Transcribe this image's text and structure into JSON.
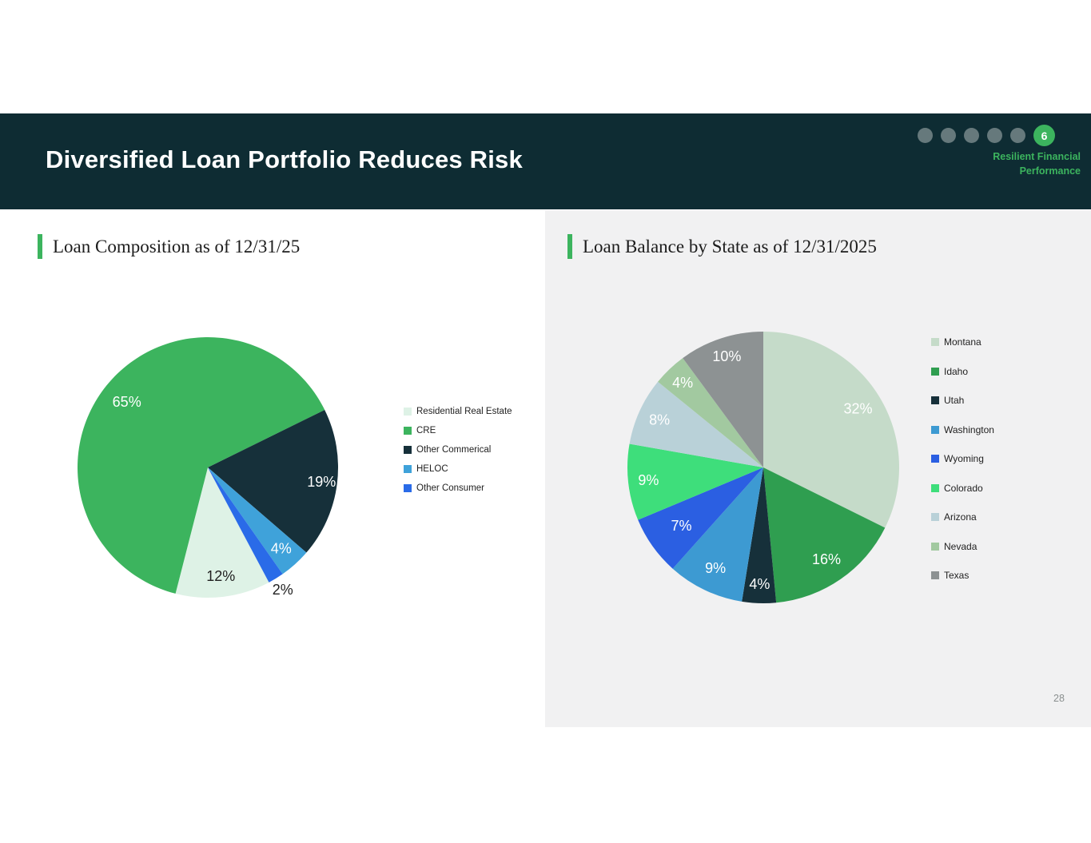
{
  "slide": {
    "title": "Diversified Loan Portfolio Reduces Risk",
    "page_number": "28"
  },
  "header": {
    "progress_dot_count": 5,
    "badge_number": "6",
    "brand_line1": "Resilient Financial",
    "brand_line2": "Performance"
  },
  "panels": {
    "left_title": "Loan Composition as of 12/31/25",
    "right_title": "Loan Balance by State as of 12/31/2025"
  },
  "colors": {
    "header_bg": "#0e2c33",
    "accent_green": "#3cb45e",
    "panel_bg": "#f1f1f2",
    "dot_gray": "#66797c"
  },
  "chart_data": [
    {
      "type": "pie",
      "title": "Loan Composition as of 12/31/25",
      "categories": [
        "Residential Real Estate",
        "CRE",
        "Other Commerical",
        "HELOC",
        "Other Consumer"
      ],
      "values": [
        12,
        65,
        19,
        4,
        2
      ],
      "data_labels": [
        "12%",
        "65%",
        "19%",
        "4%",
        "2%"
      ],
      "colors": [
        "#def2e6",
        "#3cb45e",
        "#16303a",
        "#3fa2da",
        "#2a6be8"
      ],
      "label_colors": [
        "#1f1f1f",
        "#ffffff",
        "#ffffff",
        "#ffffff",
        "#1f1f1f"
      ],
      "label_radius": [
        0.84,
        0.8,
        0.88,
        0.84,
        1.1
      ],
      "start_angle_deg": 152,
      "legend_position": "right"
    },
    {
      "type": "pie",
      "title": "Loan Balance by State as of 12/31/2025",
      "categories": [
        "Montana",
        "Idaho",
        "Utah",
        "Washington",
        "Wyoming",
        "Colorado",
        "Arizona",
        "Nevada",
        "Texas"
      ],
      "values": [
        32,
        16,
        4,
        9,
        7,
        9,
        8,
        4,
        10
      ],
      "data_labels": [
        "32%",
        "16%",
        "4%",
        "9%",
        "7%",
        "9%",
        "8%",
        "4%",
        "10%"
      ],
      "colors": [
        "#c5dbc9",
        "#2f9e50",
        "#16303a",
        "#3d9ad2",
        "#2b5fe2",
        "#3ede7b",
        "#b9d1d8",
        "#a2c9a0",
        "#8d9293"
      ],
      "label_colors": [
        "#ffffff",
        "#ffffff",
        "#ffffff",
        "#ffffff",
        "#ffffff",
        "#ffffff",
        "#ffffff",
        "#ffffff",
        "#ffffff"
      ],
      "label_radius": [
        0.82,
        0.82,
        0.86,
        0.82,
        0.74,
        0.85,
        0.84,
        0.86,
        0.86
      ],
      "start_angle_deg": 0,
      "legend_position": "right"
    }
  ]
}
